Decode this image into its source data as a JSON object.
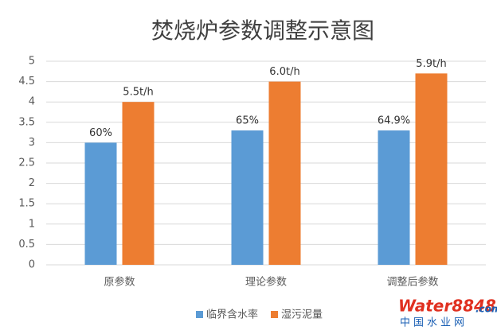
{
  "chart_data": {
    "type": "bar",
    "title": "焚烧炉参数调整示意图",
    "categories": [
      "原参数",
      "理论参数",
      "调整后参数"
    ],
    "series": [
      {
        "name": "临界含水率",
        "color": "#5b9bd5",
        "values": [
          3,
          3.3,
          3.3
        ],
        "labels": [
          "60%",
          "65%",
          "64.9%"
        ]
      },
      {
        "name": "湿污泥量",
        "color": "#ed7d31",
        "values": [
          4,
          4.5,
          4.7
        ],
        "labels": [
          "5.5t/h",
          "6.0t/h",
          "5.9t/h"
        ]
      }
    ],
    "ylim": [
      0,
      5
    ],
    "yticks": [
      0,
      0.5,
      1,
      1.5,
      2,
      2.5,
      3,
      3.5,
      4,
      4.5,
      5
    ],
    "grid": true,
    "legend": "bottom"
  },
  "watermark": {
    "brand": "Water8848",
    "domain": ".com",
    "site": "中国水业网"
  }
}
